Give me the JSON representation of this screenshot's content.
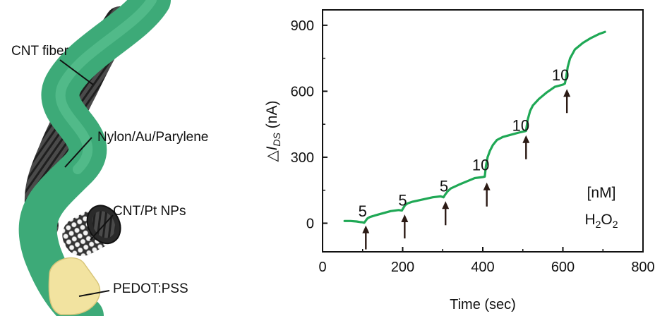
{
  "illustration": {
    "labels": {
      "cnt_fiber": "CNT fiber",
      "nylon": "Nylon/Au/Parylene",
      "cnt_pt": "CNT/Pt NPs",
      "pedot": "PEDOT:PSS"
    },
    "colors": {
      "green": "#3DAA78",
      "dark_fiber": "#3a3a3a",
      "pedot": "#F2E3A0",
      "beads": "#f2f2f2"
    }
  },
  "chart_data": {
    "type": "line",
    "xlabel": "Time (sec)",
    "ylabel_prefix": "△",
    "ylabel_var": "I",
    "ylabel_sub": "DS",
    "ylabel_unit": " (nA)",
    "xlim": [
      0,
      800
    ],
    "ylim": [
      -130,
      970
    ],
    "xticks": [
      0,
      200,
      400,
      600,
      800
    ],
    "yticks": [
      0,
      300,
      600,
      900
    ],
    "grid": false,
    "series": [
      {
        "color": "#1FA855",
        "x": [
          55,
          70,
          85,
          95,
          100,
          104,
          108,
          112,
          118,
          130,
          150,
          170,
          190,
          198,
          202,
          206,
          212,
          225,
          250,
          275,
          295,
          302,
          306,
          312,
          320,
          340,
          360,
          380,
          400,
          405,
          408,
          412,
          418,
          425,
          435,
          450,
          470,
          490,
          505,
          508,
          512,
          518,
          525,
          540,
          560,
          580,
          600,
          605,
          608,
          612,
          618,
          630,
          650,
          670,
          690,
          705
        ],
        "y": [
          10,
          10,
          8,
          5,
          4,
          2,
          12,
          22,
          28,
          35,
          45,
          55,
          60,
          58,
          70,
          82,
          90,
          98,
          108,
          118,
          122,
          118,
          130,
          145,
          158,
          175,
          190,
          205,
          210,
          212,
          260,
          300,
          330,
          355,
          378,
          392,
          402,
          412,
          418,
          420,
          470,
          510,
          535,
          565,
          595,
          620,
          630,
          635,
          660,
          710,
          750,
          790,
          820,
          842,
          860,
          870
        ]
      }
    ],
    "annotations": [
      {
        "text": "5",
        "x": 100,
        "y": 30
      },
      {
        "text": "5",
        "x": 200,
        "y": 80
      },
      {
        "text": "5",
        "x": 303,
        "y": 145
      },
      {
        "text": "10",
        "x": 395,
        "y": 240
      },
      {
        "text": "10",
        "x": 495,
        "y": 420
      },
      {
        "text": "10",
        "x": 594,
        "y": 650
      }
    ],
    "arrows": [
      {
        "x": 108,
        "y_tip": -10
      },
      {
        "x": 205,
        "y_tip": 40
      },
      {
        "x": 307,
        "y_tip": 100
      },
      {
        "x": 410,
        "y_tip": 185
      },
      {
        "x": 508,
        "y_tip": 400
      },
      {
        "x": 610,
        "y_tip": 610
      }
    ],
    "inset_unit": "[nM]",
    "inset_species": "H",
    "inset_sub1": "2",
    "inset_mid": "O",
    "inset_sub2": "2",
    "colors": {
      "axis": "#111111",
      "arrow": "#2b1a14"
    }
  }
}
